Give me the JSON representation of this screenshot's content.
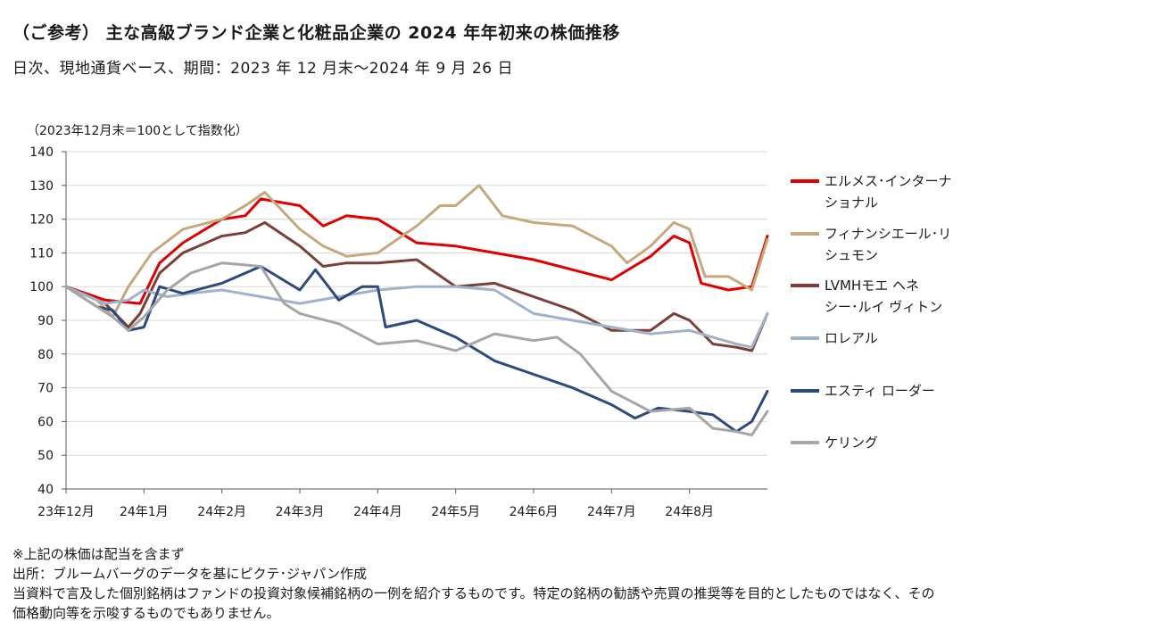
{
  "header": {
    "title": "（ご参考） 主な高級ブランド企業と化粧品企業の 2024 年年初来の株価推移",
    "subtitle": "日次、現地通貨ベース、期間：2023 年 12 月末～2024 年 9 月 26 日"
  },
  "chart_data": {
    "type": "line",
    "ylabel": "（2023年12月末＝100として指数化）",
    "ylim": [
      40,
      140
    ],
    "yticks": [
      40,
      50,
      60,
      70,
      80,
      90,
      100,
      110,
      120,
      130,
      140
    ],
    "xlim": [
      0,
      9.0
    ],
    "x_ticks": [
      0,
      1,
      2,
      3,
      4,
      5,
      6,
      7,
      8
    ],
    "categories": [
      "23年12月",
      "24年1月",
      "24年2月",
      "24年3月",
      "24年4月",
      "24年5月",
      "24年6月",
      "24年7月",
      "24年8月"
    ],
    "grid": true,
    "legend_position": "right",
    "series": [
      {
        "name": "エルメス･インターナショナル",
        "legend_lines": [
          "エルメス･インターナ",
          "ショナル"
        ],
        "color": "#e00000",
        "x": [
          0,
          0.5,
          0.95,
          1.2,
          1.5,
          2.0,
          2.3,
          2.5,
          3.0,
          3.3,
          3.6,
          4.0,
          4.5,
          5.0,
          5.5,
          6.0,
          6.5,
          7.0,
          7.5,
          7.8,
          8.0,
          8.15,
          8.5,
          8.8,
          9.0
        ],
        "y": [
          100,
          96,
          95,
          107,
          113,
          120,
          121,
          126,
          124,
          118,
          121,
          120,
          113,
          112,
          110,
          108,
          105,
          102,
          109,
          115,
          113,
          101,
          99,
          100,
          115
        ]
      },
      {
        "name": "フィナンシエール･リシュモン",
        "legend_lines": [
          "フィナンシエール･リ",
          "シュモン"
        ],
        "color": "#c4a97c",
        "x": [
          0,
          0.4,
          0.6,
          0.8,
          0.95,
          1.1,
          1.5,
          2.0,
          2.3,
          2.55,
          3.0,
          3.3,
          3.6,
          4.0,
          4.5,
          4.8,
          5.0,
          5.3,
          5.6,
          6.0,
          6.5,
          7.0,
          7.2,
          7.5,
          7.8,
          8.0,
          8.2,
          8.5,
          8.8,
          9.0
        ],
        "y": [
          100,
          96,
          91,
          100,
          105,
          110,
          117,
          120,
          124,
          128,
          117,
          112,
          109,
          110,
          118,
          124,
          124,
          130,
          121,
          119,
          118,
          112,
          107,
          112,
          119,
          117,
          103,
          103,
          99,
          114
        ]
      },
      {
        "name": "LVMHモエ ヘネシー･ルイ ヴィトン",
        "legend_lines": [
          "LVMHモエ ヘネ",
          "シー･ルイ ヴィトン"
        ],
        "color": "#7b3f37",
        "x": [
          0,
          0.5,
          0.8,
          0.95,
          1.2,
          1.5,
          2.0,
          2.3,
          2.55,
          3.0,
          3.3,
          3.6,
          4.0,
          4.5,
          5.0,
          5.5,
          6.0,
          6.5,
          7.0,
          7.5,
          7.8,
          8.0,
          8.3,
          8.6,
          8.8,
          9.0
        ],
        "y": [
          100,
          95,
          88,
          92,
          104,
          110,
          115,
          116,
          119,
          112,
          106,
          107,
          107,
          108,
          100,
          101,
          97,
          93,
          87,
          87,
          92,
          90,
          83,
          82,
          81,
          92
        ]
      },
      {
        "name": "ロレアル",
        "legend_lines": [
          "ロレアル"
        ],
        "color": "#9eb3ca",
        "x": [
          0,
          0.5,
          0.8,
          1.0,
          1.3,
          1.6,
          2.0,
          2.5,
          3.0,
          3.5,
          4.0,
          4.5,
          5.0,
          5.5,
          6.0,
          6.5,
          7.0,
          7.5,
          8.0,
          8.3,
          8.6,
          8.8,
          9.0
        ],
        "y": [
          100,
          95,
          96,
          99,
          97,
          98,
          99,
          97,
          95,
          97,
          99,
          100,
          100,
          99,
          92,
          90,
          88,
          86,
          87,
          85,
          83,
          82,
          92
        ]
      },
      {
        "name": "エスティ ローダー",
        "legend_lines": [
          "エスティ ローダー"
        ],
        "color": "#2c4b7c",
        "x": [
          0,
          0.4,
          0.6,
          0.8,
          1.0,
          1.2,
          1.5,
          2.0,
          2.5,
          3.0,
          3.2,
          3.5,
          3.8,
          4.0,
          4.1,
          4.5,
          5.0,
          5.5,
          6.0,
          6.5,
          7.0,
          7.3,
          7.6,
          8.0,
          8.3,
          8.6,
          8.8,
          9.0
        ],
        "y": [
          100,
          94,
          93,
          87,
          88,
          100,
          98,
          101,
          106,
          99,
          105,
          96,
          100,
          100,
          88,
          90,
          85,
          78,
          74,
          70,
          65,
          61,
          64,
          63,
          62,
          57,
          60,
          69
        ]
      },
      {
        "name": "ケリング",
        "legend_lines": [
          "ケリング"
        ],
        "color": "#a6a6a6",
        "x": [
          0,
          0.4,
          0.6,
          0.8,
          1.0,
          1.3,
          1.6,
          2.0,
          2.5,
          2.8,
          3.0,
          3.5,
          4.0,
          4.5,
          5.0,
          5.5,
          6.0,
          6.3,
          6.6,
          7.0,
          7.5,
          8.0,
          8.3,
          8.6,
          8.8,
          9.0
        ],
        "y": [
          100,
          94,
          91,
          87,
          91,
          99,
          104,
          107,
          106,
          95,
          92,
          89,
          83,
          84,
          81,
          86,
          84,
          85,
          80,
          69,
          63,
          64,
          58,
          57,
          56,
          63
        ]
      }
    ]
  },
  "notes": [
    "※上記の株価は配当を含まず",
    "出所：ブルームバーグのデータを基にピクテ･ジャパン作成",
    "当資料で言及した個別銘柄はファンドの投資対象候補銘柄の一例を紹介するものです。特定の銘柄の勧誘や売買の推奨等を目的としたものではなく、その",
    "価格動向等を示唆するものでもありません。"
  ]
}
